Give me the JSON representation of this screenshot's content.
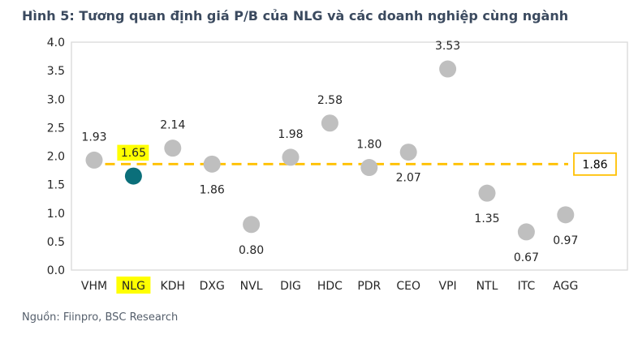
{
  "title": "Hình 5: Tương quan định giá P/B của NLG và các doanh nghiệp cùng ngành",
  "source": "Nguồn: Fiinpro, BSC Research",
  "chart_data": {
    "type": "scatter",
    "title": "Tương quan định giá P/B của NLG và các doanh nghiệp cùng ngành",
    "categories": [
      "VHM",
      "NLG",
      "KDH",
      "DXG",
      "NVL",
      "DIG",
      "HDC",
      "PDR",
      "CEO",
      "VPI",
      "NTL",
      "ITC",
      "AGG"
    ],
    "values": [
      1.93,
      1.65,
      2.14,
      1.86,
      0.8,
      1.98,
      2.58,
      1.8,
      2.07,
      3.53,
      1.35,
      0.67,
      0.97
    ],
    "label_positions": [
      "above",
      "above",
      "above",
      "below",
      "below",
      "above",
      "above",
      "above",
      "below",
      "above",
      "below",
      "below",
      "below"
    ],
    "highlighted_category": "NLG",
    "highlighted_value": 1.65,
    "reference_line": {
      "value": 1.86,
      "label": "1.86",
      "style": "dashed"
    },
    "xlabel": "",
    "ylabel": "",
    "ylim": [
      0,
      4
    ],
    "ytick_step": 0.5,
    "grid": false,
    "legend": "none",
    "colors": {
      "dot": "#BFBFBF",
      "highlight_dot": "#0B6F7A",
      "reference": "#FFC000",
      "category_highlight": "#FFFF00",
      "label_highlight": "#FFFF00",
      "title": "#3B4A5F",
      "source": "#545E6B",
      "axis_border": "#D9D9D9",
      "text": "#262626"
    }
  }
}
